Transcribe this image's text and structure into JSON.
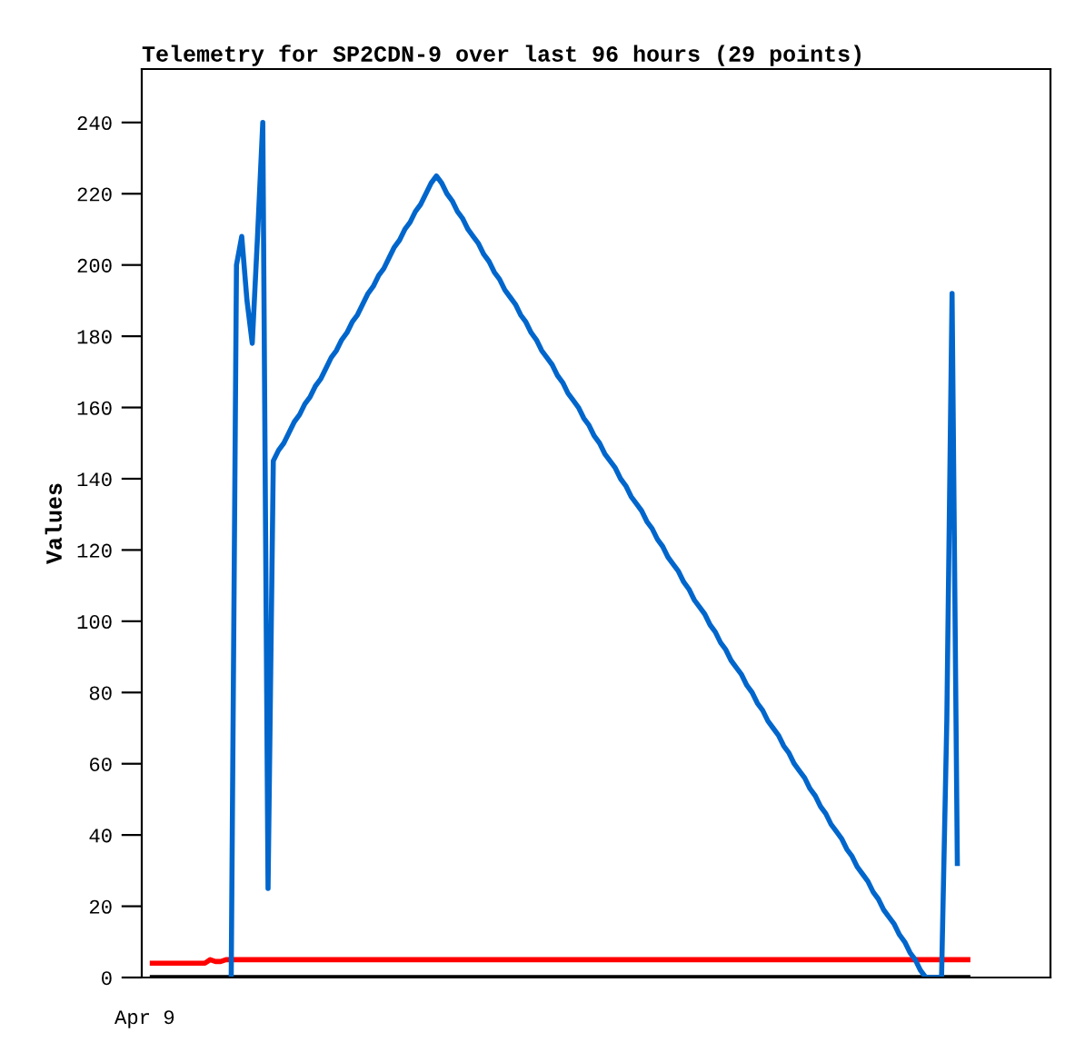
{
  "chart_data": {
    "type": "line",
    "title": "Telemetry for SP2CDN-9 over last 96 hours (29 points)",
    "ylabel": "Values",
    "annotations": [
      "Apr 9"
    ],
    "categories": [
      null,
      null,
      null,
      null,
      null,
      null,
      null,
      null,
      null,
      null,
      null,
      null,
      null,
      null,
      null,
      null,
      null,
      null,
      null,
      null,
      null,
      null,
      null,
      null,
      null,
      null,
      null,
      null,
      null,
      null,
      null,
      null,
      null,
      null,
      null,
      null,
      null,
      null,
      null,
      null,
      null,
      null,
      null,
      null,
      null,
      null,
      null,
      null,
      null,
      null,
      null,
      null,
      null,
      null,
      null,
      null,
      null,
      null,
      null,
      null,
      null,
      null,
      null,
      null,
      null,
      null,
      null,
      null,
      null,
      null,
      null,
      null,
      null,
      null,
      null,
      null,
      null,
      null,
      null,
      null,
      null,
      null,
      null,
      null,
      null,
      null,
      null,
      null,
      null,
      null,
      null,
      null,
      null,
      null,
      null,
      null,
      null,
      null,
      null,
      null,
      null,
      null,
      null,
      null,
      null,
      null,
      null,
      null,
      null,
      null,
      null,
      null,
      null,
      null,
      null,
      null,
      null,
      null,
      null,
      null,
      null,
      null,
      null,
      null,
      null,
      null,
      null,
      null,
      null,
      null,
      null,
      null,
      null,
      null,
      null,
      null,
      null,
      null,
      null,
      null,
      null,
      null,
      null,
      null,
      null,
      null,
      null,
      null,
      null,
      null,
      null,
      null,
      null,
      null,
      null,
      null
    ],
    "ylim": [
      0,
      255
    ],
    "yticks": [
      0,
      20,
      40,
      60,
      80,
      100,
      120,
      140,
      160,
      180,
      200,
      220,
      240
    ],
    "grid": false,
    "legend": false,
    "series": [
      {
        "color": "#000000",
        "values": [
          0,
          0,
          0,
          0,
          0,
          0,
          0,
          0,
          0,
          0,
          0,
          0,
          0,
          0,
          0,
          0,
          0,
          0,
          0,
          0,
          0,
          0,
          0,
          0,
          0,
          0,
          0,
          0,
          0,
          0,
          0,
          0,
          0,
          0,
          0,
          0,
          0,
          0,
          0,
          0,
          0,
          0,
          0,
          0,
          0,
          0,
          0,
          0,
          0,
          0,
          0,
          0,
          0,
          0,
          0,
          0,
          0,
          0,
          0,
          0,
          0,
          0,
          0,
          0,
          0,
          0,
          0,
          0,
          0,
          0,
          0,
          0,
          0,
          0,
          0,
          0,
          0,
          0,
          0,
          0,
          0,
          0,
          0,
          0,
          0,
          0,
          0,
          0,
          0,
          0,
          0,
          0,
          0,
          0,
          0,
          0,
          0,
          0,
          0,
          0,
          0,
          0,
          0,
          0,
          0,
          0,
          0,
          0,
          0,
          0,
          0,
          0,
          0,
          0,
          0,
          0,
          0,
          0,
          0,
          0,
          0,
          0,
          0,
          0,
          0,
          0,
          0,
          0,
          0,
          0,
          0,
          0,
          0,
          0,
          0,
          0,
          0,
          0,
          0,
          0,
          0,
          0,
          0,
          0,
          0,
          0,
          0,
          0,
          0,
          0,
          0,
          0,
          0,
          0,
          0,
          0
        ]
      },
      {
        "color": "#ff0000",
        "values": [
          4,
          4,
          4,
          4,
          4,
          4,
          4,
          4,
          4,
          4,
          4,
          5,
          4.5,
          4.5,
          5,
          5,
          5,
          5,
          5,
          5,
          5,
          5,
          5,
          5,
          5,
          5,
          5,
          5,
          5,
          5,
          5,
          5,
          5,
          5,
          5,
          5,
          5,
          5,
          5,
          5,
          5,
          5,
          5,
          5,
          5,
          5,
          5,
          5,
          5,
          5,
          5,
          5,
          5,
          5,
          5,
          5,
          5,
          5,
          5,
          5,
          5,
          5,
          5,
          5,
          5,
          5,
          5,
          5,
          5,
          5,
          5,
          5,
          5,
          5,
          5,
          5,
          5,
          5,
          5,
          5,
          5,
          5,
          5,
          5,
          5,
          5,
          5,
          5,
          5,
          5,
          5,
          5,
          5,
          5,
          5,
          5,
          5,
          5,
          5,
          5,
          5,
          5,
          5,
          5,
          5,
          5,
          5,
          5,
          5,
          5,
          5,
          5,
          5,
          5,
          5,
          5,
          5,
          5,
          5,
          5,
          5,
          5,
          5,
          5,
          5,
          5,
          5,
          5,
          5,
          5,
          5,
          5,
          5,
          5,
          5,
          5,
          5,
          5,
          5,
          5,
          5,
          5,
          5,
          5,
          5,
          5,
          5,
          5,
          5,
          5,
          5,
          5,
          5,
          5,
          5,
          5
        ]
      },
      {
        "color": "#0066cc",
        "values": [
          null,
          null,
          null,
          null,
          null,
          null,
          null,
          null,
          null,
          null,
          null,
          null,
          null,
          null,
          null,
          0,
          200,
          208,
          190,
          178,
          208,
          240,
          25,
          145,
          148,
          150,
          153,
          156,
          158,
          161,
          163,
          166,
          168,
          171,
          174,
          176,
          179,
          181,
          184,
          186,
          189,
          192,
          194,
          197,
          199,
          202,
          205,
          207,
          210,
          212,
          215,
          217,
          220,
          223,
          225,
          223,
          220,
          218,
          215,
          213,
          210,
          208,
          206,
          203,
          201,
          198,
          196,
          193,
          191,
          189,
          186,
          184,
          181,
          179,
          176,
          174,
          172,
          169,
          167,
          164,
          162,
          160,
          157,
          155,
          152,
          150,
          147,
          145,
          143,
          140,
          138,
          135,
          133,
          131,
          128,
          126,
          123,
          121,
          118,
          116,
          114,
          111,
          109,
          106,
          104,
          102,
          99,
          97,
          94,
          92,
          89,
          87,
          85,
          82,
          80,
          77,
          75,
          72,
          70,
          68,
          65,
          63,
          60,
          58,
          56,
          53,
          51,
          48,
          46,
          43,
          41,
          39,
          36,
          34,
          31,
          29,
          27,
          24,
          22,
          19,
          17,
          15,
          12,
          10,
          7,
          5,
          2,
          0,
          0,
          0,
          0,
          72,
          192,
          32,
          null,
          null
        ]
      }
    ]
  }
}
